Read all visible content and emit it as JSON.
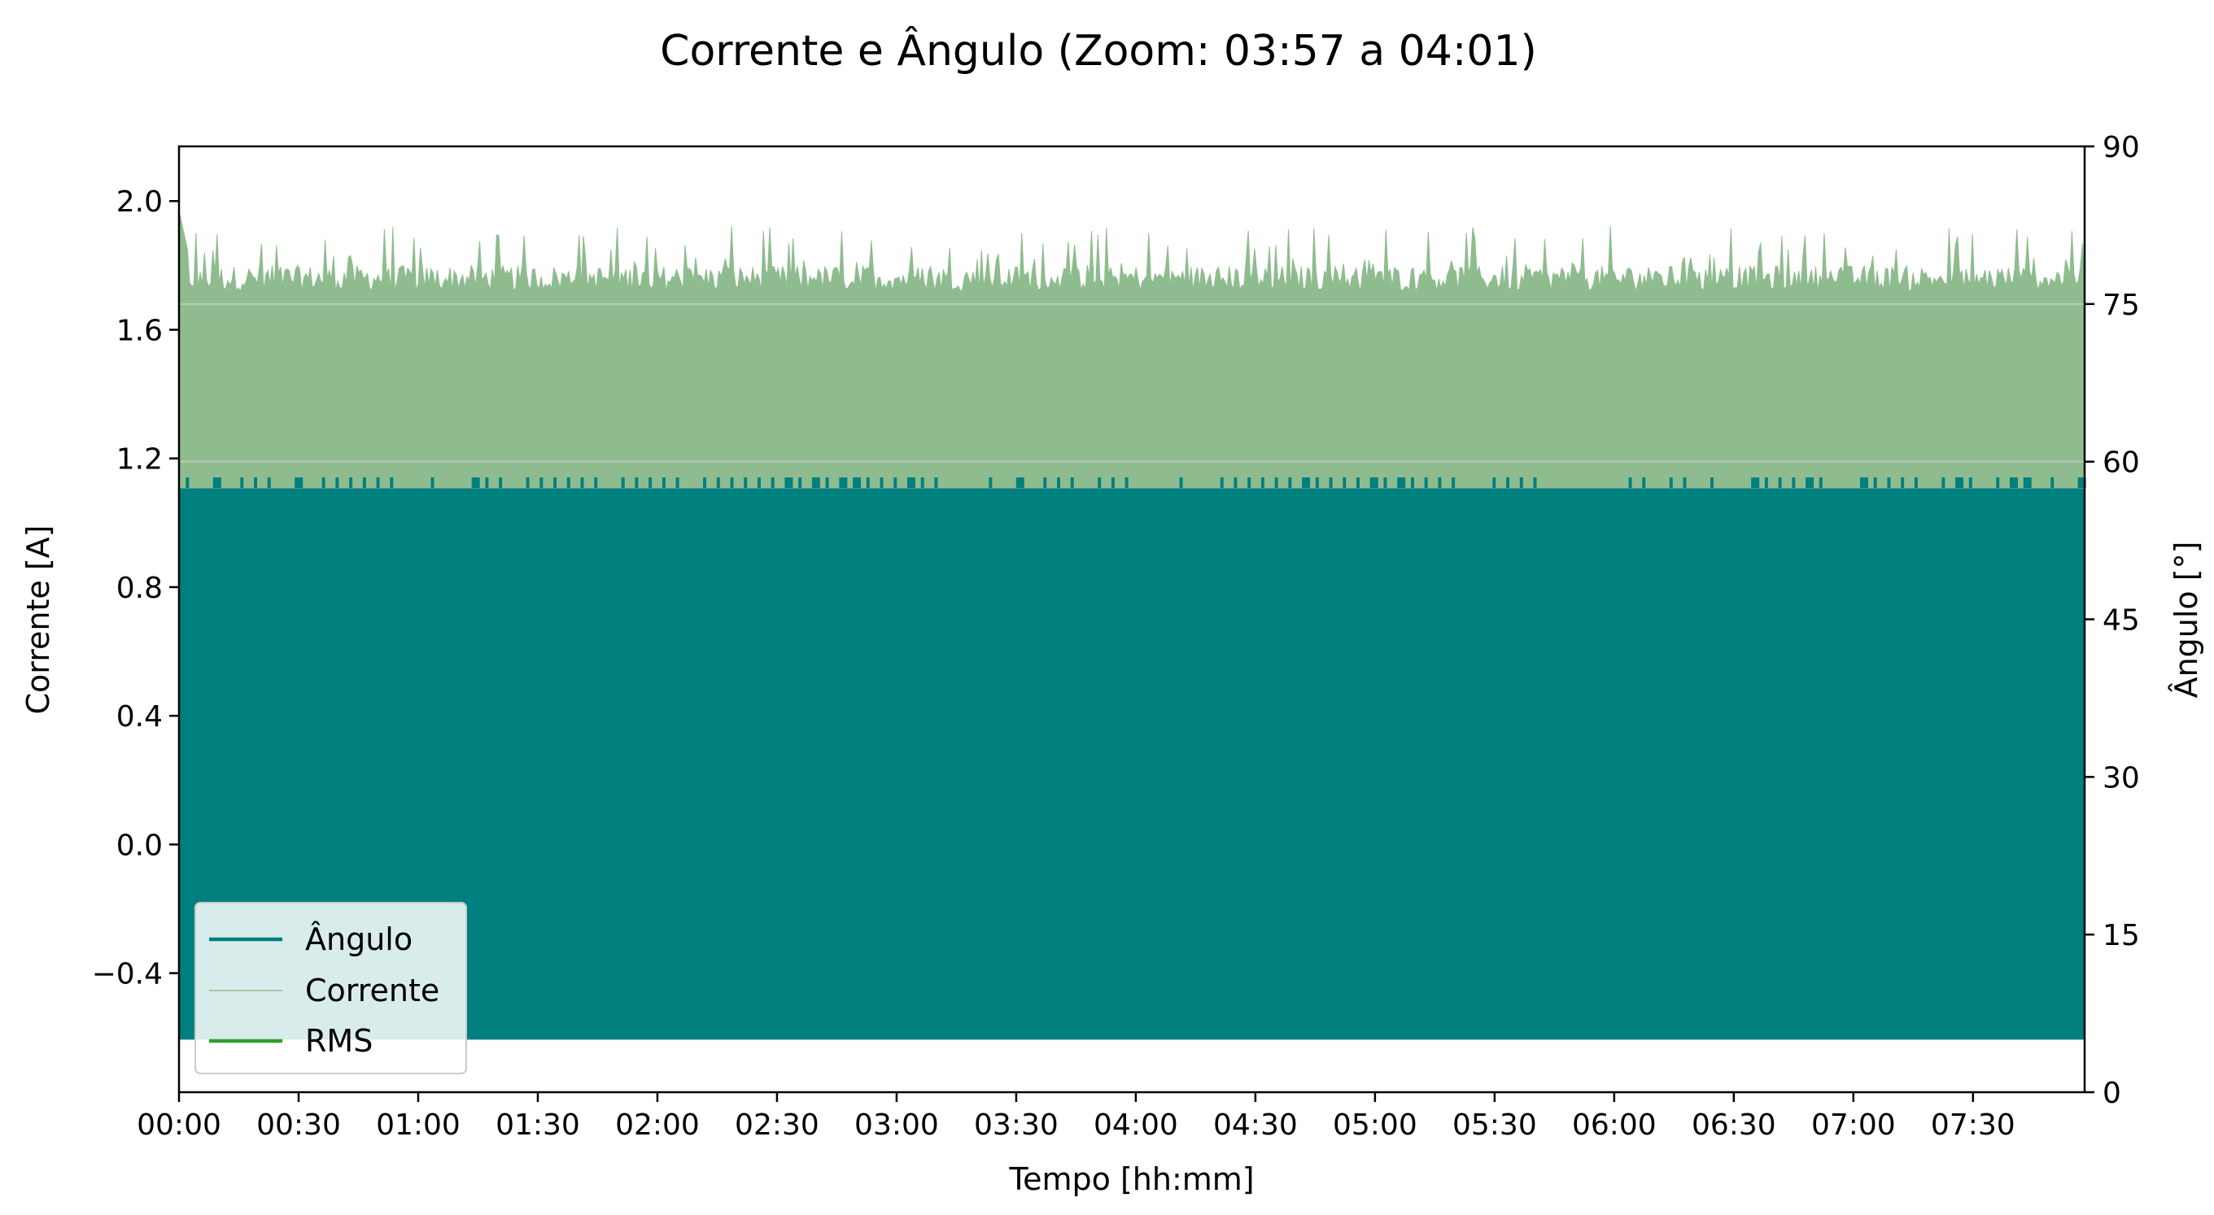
{
  "chart_data": {
    "type": "line",
    "title": "Corrente e Ângulo (Zoom: 03:57 a 04:01)",
    "xlabel": "Tempo [hh:mm]",
    "ylabel_left": "Corrente [A]",
    "ylabel_right": "Ângulo [°]",
    "x_ticks": [
      "00:00",
      "00:30",
      "01:00",
      "01:30",
      "02:00",
      "02:30",
      "03:00",
      "03:30",
      "04:00",
      "04:30",
      "05:00",
      "05:30",
      "06:00",
      "06:30",
      "07:00",
      "07:30"
    ],
    "x_range_minutes": [
      0,
      478
    ],
    "y_left_ticks": [
      2.0,
      1.6,
      1.2,
      0.8,
      0.4,
      0.0,
      -0.4
    ],
    "y_left_tick_labels": [
      "2.0",
      "1.6",
      "1.2",
      "0.8",
      "0.4",
      "0.0",
      "−0.4"
    ],
    "y_left_range": [
      -0.77,
      2.17
    ],
    "y_right_ticks": [
      90,
      75,
      60,
      45,
      30,
      15,
      0
    ],
    "y_right_range": [
      0,
      90
    ],
    "grid": false,
    "legend_position": "lower-left",
    "series": [
      {
        "name": "Ângulo",
        "color": "#007f7f",
        "axis": "right",
        "description_values": {
          "min_deg": 5,
          "max_deg": 57.5,
          "spike_max_deg": 58.5
        }
      },
      {
        "name": "Corrente",
        "color": "#8fbc8f",
        "axis": "left",
        "description_values": {
          "min_A": -0.61,
          "typical_max_A": 1.78,
          "peak_max_A": 1.97
        }
      },
      {
        "name": "RMS",
        "color": "#2ca02c",
        "axis": "left",
        "description_values": {
          "level_A": 1.68
        }
      }
    ],
    "rms_reference_levels": [
      1.68,
      1.19
    ]
  }
}
